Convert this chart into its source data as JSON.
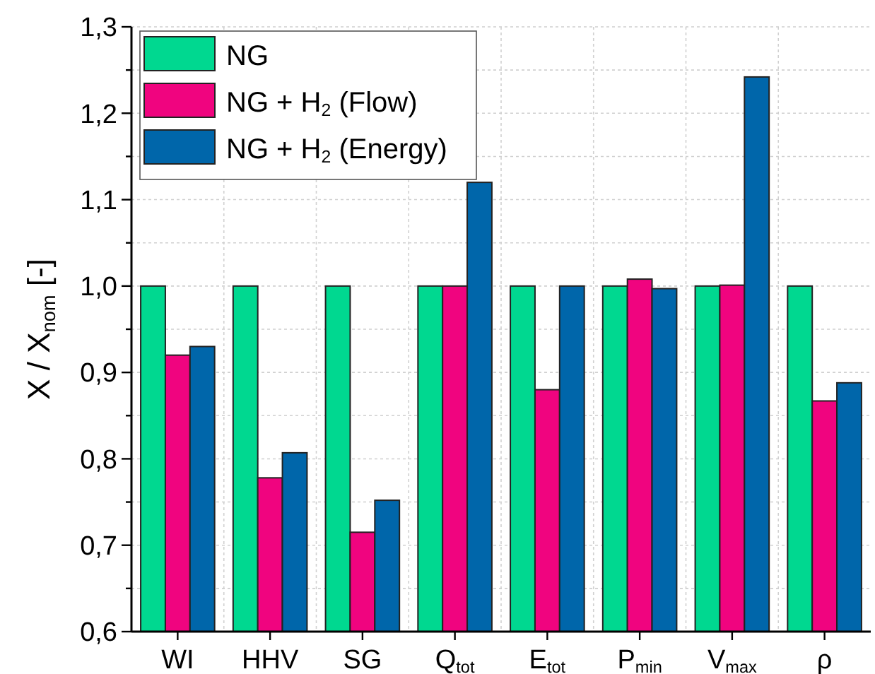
{
  "chart_data": {
    "type": "bar",
    "ylabel": "X / X$_{nom}$ [-]",
    "categories": [
      "WI",
      "HHV",
      "SG",
      "Q$_{tot}$",
      "E$_{tot}$",
      "P$_{min}$",
      "V$_{max}$",
      "ρ"
    ],
    "series": [
      {
        "name": "NG",
        "color": "#00d890",
        "values": [
          1.0,
          1.0,
          1.0,
          1.0,
          1.0,
          1.0,
          1.0,
          1.0
        ]
      },
      {
        "name": "NG + H$_{2}$ (Flow)",
        "color": "#f0047f",
        "values": [
          0.92,
          0.778,
          0.715,
          1.0,
          0.88,
          1.008,
          1.001,
          0.867
        ]
      },
      {
        "name": "NG + H$_{2}$ (Energy)",
        "color": "#0066aa",
        "values": [
          0.93,
          0.807,
          0.752,
          1.12,
          1.0,
          0.997,
          1.242,
          0.888
        ]
      }
    ],
    "ylim": [
      0.6,
      1.3
    ],
    "yticks": [
      {
        "value": 0.6,
        "label": "0,6"
      },
      {
        "value": 0.65,
        "label": null
      },
      {
        "value": 0.7,
        "label": "0,7"
      },
      {
        "value": 0.75,
        "label": null
      },
      {
        "value": 0.8,
        "label": "0,8"
      },
      {
        "value": 0.85,
        "label": null
      },
      {
        "value": 0.9,
        "label": "0,9"
      },
      {
        "value": 0.95,
        "label": null
      },
      {
        "value": 1.0,
        "label": "1,0"
      },
      {
        "value": 1.05,
        "label": null
      },
      {
        "value": 1.1,
        "label": "1,1"
      },
      {
        "value": 1.15,
        "label": null
      },
      {
        "value": 1.2,
        "label": "1,2"
      },
      {
        "value": 1.25,
        "label": null
      },
      {
        "value": 1.3,
        "label": "1,3"
      }
    ],
    "grid": true,
    "legend": "top left"
  }
}
